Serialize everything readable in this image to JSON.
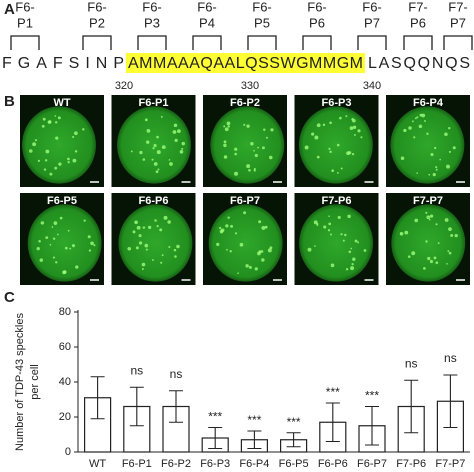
{
  "panel_a": {
    "label": "A",
    "peptides": [
      [
        "F6-",
        "P1"
      ],
      [
        "F6-",
        "P2"
      ],
      [
        "F6-",
        "P3"
      ],
      [
        "F6-",
        "P4"
      ],
      [
        "F6-",
        "P5"
      ],
      [
        "F6-",
        "P6"
      ],
      [
        "F6-",
        "P7"
      ],
      [
        "F7-",
        "P6"
      ],
      [
        "F7-",
        "P7"
      ]
    ],
    "sequence_before": "FGAFSINP",
    "sequence_highlight": "AMMAAAQAALQSSWGMMGM",
    "sequence_after": "LASQQNQS",
    "positions": [
      "320",
      "330",
      "340"
    ]
  },
  "panel_b": {
    "label": "B",
    "images": [
      "WT",
      "F6-P1",
      "F6-P2",
      "F6-P3",
      "F6-P4",
      "F6-P5",
      "F6-P6",
      "F6-P7",
      "F7-P6",
      "F7-P7"
    ]
  },
  "panel_c": {
    "label": "C"
  },
  "chart_data": {
    "type": "bar",
    "ylabel_lines": [
      "Number of TDP-43 speckles",
      "per cell"
    ],
    "categories": [
      "WT",
      "F6-P1",
      "F6-P2",
      "F6-P3",
      "F6-P4",
      "F6-P5",
      "F6-P6",
      "F6-P7",
      "F7-P6",
      "F7-P7"
    ],
    "values": [
      31,
      26,
      26,
      8,
      7,
      7,
      17,
      15,
      26,
      29
    ],
    "errors": [
      12,
      11,
      9,
      6,
      5,
      4,
      11,
      11,
      15,
      15
    ],
    "annotations": [
      null,
      "ns",
      "ns",
      "***",
      "***",
      "***",
      "***",
      "***",
      "ns",
      "ns"
    ],
    "color": "#ffffff",
    "ylim": [
      0,
      80
    ],
    "yticks": [
      0,
      20,
      40,
      60,
      80
    ]
  }
}
